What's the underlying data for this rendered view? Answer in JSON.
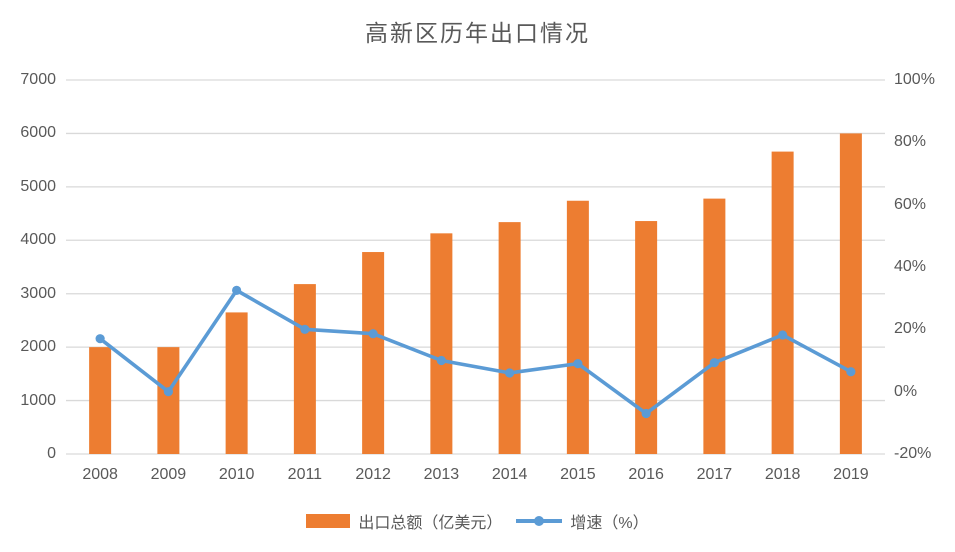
{
  "title": "高新区历年出口情况",
  "legend": [
    {
      "label": "出口总额（亿美元）",
      "series": "bar"
    },
    {
      "label": "增速（%）",
      "series": "line"
    }
  ],
  "colors": {
    "bar": "#ED7D31",
    "line": "#5B9BD5",
    "gridline": "#D9D9D9",
    "axis_text": "#595959",
    "title_text": "#595959",
    "background": "#FFFFFF"
  },
  "chart_data": {
    "type": "bar",
    "subtype": "combo-bar-line-dual-axis",
    "title": "高新区历年出口情况",
    "categories": [
      "2008",
      "2009",
      "2010",
      "2011",
      "2012",
      "2013",
      "2014",
      "2015",
      "2016",
      "2017",
      "2018",
      "2019"
    ],
    "series": [
      {
        "name": "出口总额（亿美元）",
        "type": "bar",
        "axis": "left",
        "color": "#ED7D31",
        "values": [
          2000,
          2000,
          2650,
          3180,
          3780,
          4130,
          4340,
          4740,
          4360,
          4780,
          5660,
          6000
        ]
      },
      {
        "name": "增速（%）",
        "type": "line",
        "axis": "right",
        "color": "#5B9BD5",
        "values": [
          17,
          0,
          32.5,
          20,
          18.6,
          10,
          6,
          9,
          -7,
          9.3,
          18.2,
          6.4
        ]
      }
    ],
    "left_axis": {
      "min": 0,
      "max": 7000,
      "step": 1000,
      "ticks": [
        "0",
        "1000",
        "2000",
        "3000",
        "4000",
        "5000",
        "6000",
        "7000"
      ]
    },
    "right_axis": {
      "min": -20,
      "max": 100,
      "step": 20,
      "ticks": [
        "-20%",
        "0%",
        "20%",
        "40%",
        "60%",
        "80%",
        "100%"
      ],
      "unit": "%"
    },
    "grid": true,
    "legend_position": "bottom"
  }
}
